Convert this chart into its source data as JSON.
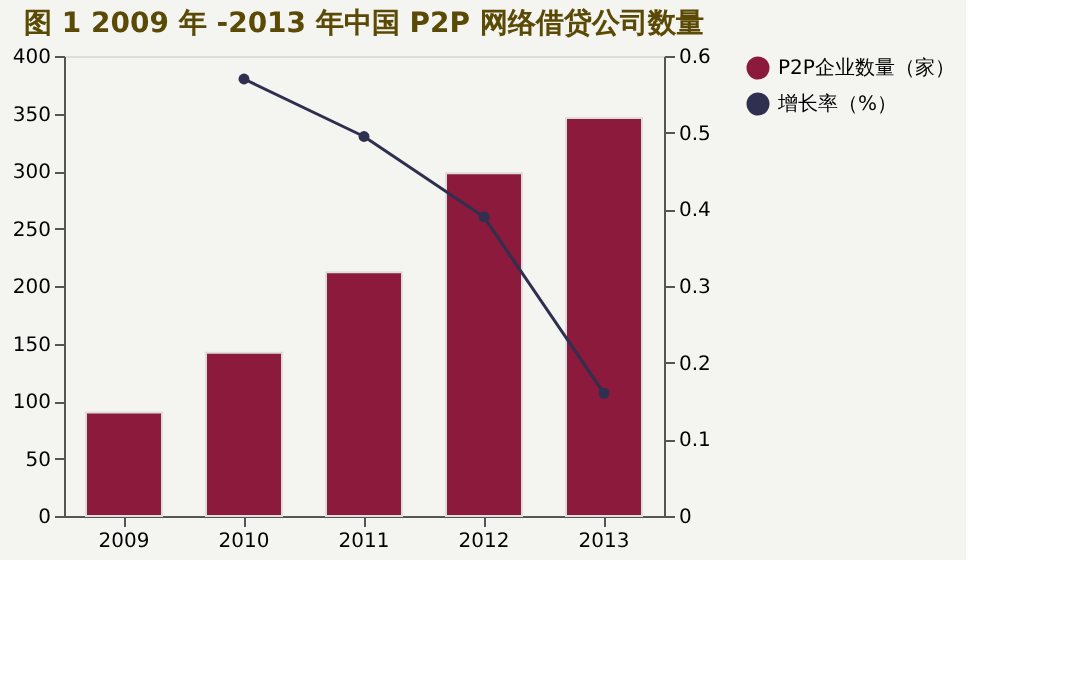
{
  "chart_data": {
    "type": "bar",
    "title": "图 1  2009 年 -2013 年中国 P2P 网络借贷公司数量",
    "categories": [
      "2009",
      "2010",
      "2011",
      "2012",
      "2013"
    ],
    "series": [
      {
        "name": "P2P企业数量（家）",
        "color": "#8b1a3c",
        "values": [
          90,
          142,
          212,
          298,
          346
        ]
      },
      {
        "name": "增长率（%）",
        "type": "line",
        "axis": "y2",
        "color": "#2f2f4f",
        "values": [
          null,
          0.57,
          0.495,
          0.39,
          0.16
        ]
      }
    ],
    "ylim": [
      0,
      400
    ],
    "yticks": [
      0,
      50,
      100,
      150,
      200,
      250,
      300,
      350,
      400
    ],
    "y2lim": [
      0,
      0.6
    ],
    "y2ticks": [
      0,
      0.1,
      0.2,
      0.3,
      0.4,
      0.5,
      0.6
    ],
    "grid": false,
    "legend": "right",
    "marker": "circle",
    "line_style": "solid"
  }
}
